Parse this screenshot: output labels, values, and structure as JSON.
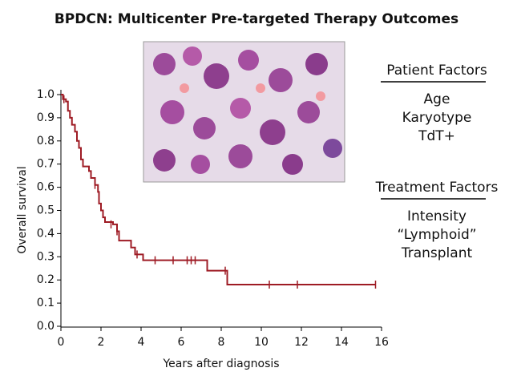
{
  "chart_data": {
    "type": "step",
    "title": "BPDCN: Multicenter Pre-targeted Therapy Outcomes",
    "x_label": "Years after diagnosis",
    "y_label": "Overall survival",
    "color": "#9e1b24",
    "x": [
      0,
      0.1,
      0.25,
      0.35,
      0.45,
      0.55,
      0.7,
      0.8,
      0.9,
      1.0,
      1.1,
      1.4,
      1.5,
      1.7,
      1.85,
      1.9,
      2.0,
      2.1,
      2.2,
      2.6,
      2.8,
      2.9,
      3.5,
      3.7,
      4.1,
      7.3,
      8.3,
      15.7
    ],
    "values": [
      1.0,
      0.98,
      0.97,
      0.93,
      0.9,
      0.87,
      0.84,
      0.8,
      0.77,
      0.72,
      0.69,
      0.67,
      0.64,
      0.61,
      0.58,
      0.53,
      0.5,
      0.47,
      0.45,
      0.44,
      0.41,
      0.37,
      0.34,
      0.31,
      0.285,
      0.24,
      0.18,
      0.18
    ],
    "censored": {
      "x": [
        0.15,
        1.7,
        2.5,
        2.8,
        3.8,
        4.7,
        5.6,
        6.3,
        6.5,
        6.7,
        8.2,
        10.4,
        11.8,
        15.7
      ],
      "values": [
        0.98,
        0.61,
        0.44,
        0.41,
        0.31,
        0.285,
        0.285,
        0.285,
        0.285,
        0.285,
        0.24,
        0.18,
        0.18,
        0.18
      ]
    },
    "xlim": [
      0,
      16
    ],
    "ylim": [
      0,
      1
    ],
    "xticks": [
      0,
      2,
      4,
      6,
      8,
      10,
      12,
      14,
      16
    ],
    "yticks": [
      {
        "value": 0,
        "label": "0.0"
      },
      0.1,
      0.2,
      0.3,
      0.4,
      0.5,
      0.6,
      0.7,
      0.8,
      0.9,
      {
        "value": 1,
        "label": "1.0"
      }
    ]
  },
  "side_panels": [
    {
      "heading": "Patient Factors",
      "items": [
        "Age",
        "Karyotype",
        "TdT+"
      ]
    },
    {
      "heading": "Treatment Factors",
      "items": [
        "Intensity",
        "“Lymphoid”",
        "Transplant"
      ]
    }
  ]
}
